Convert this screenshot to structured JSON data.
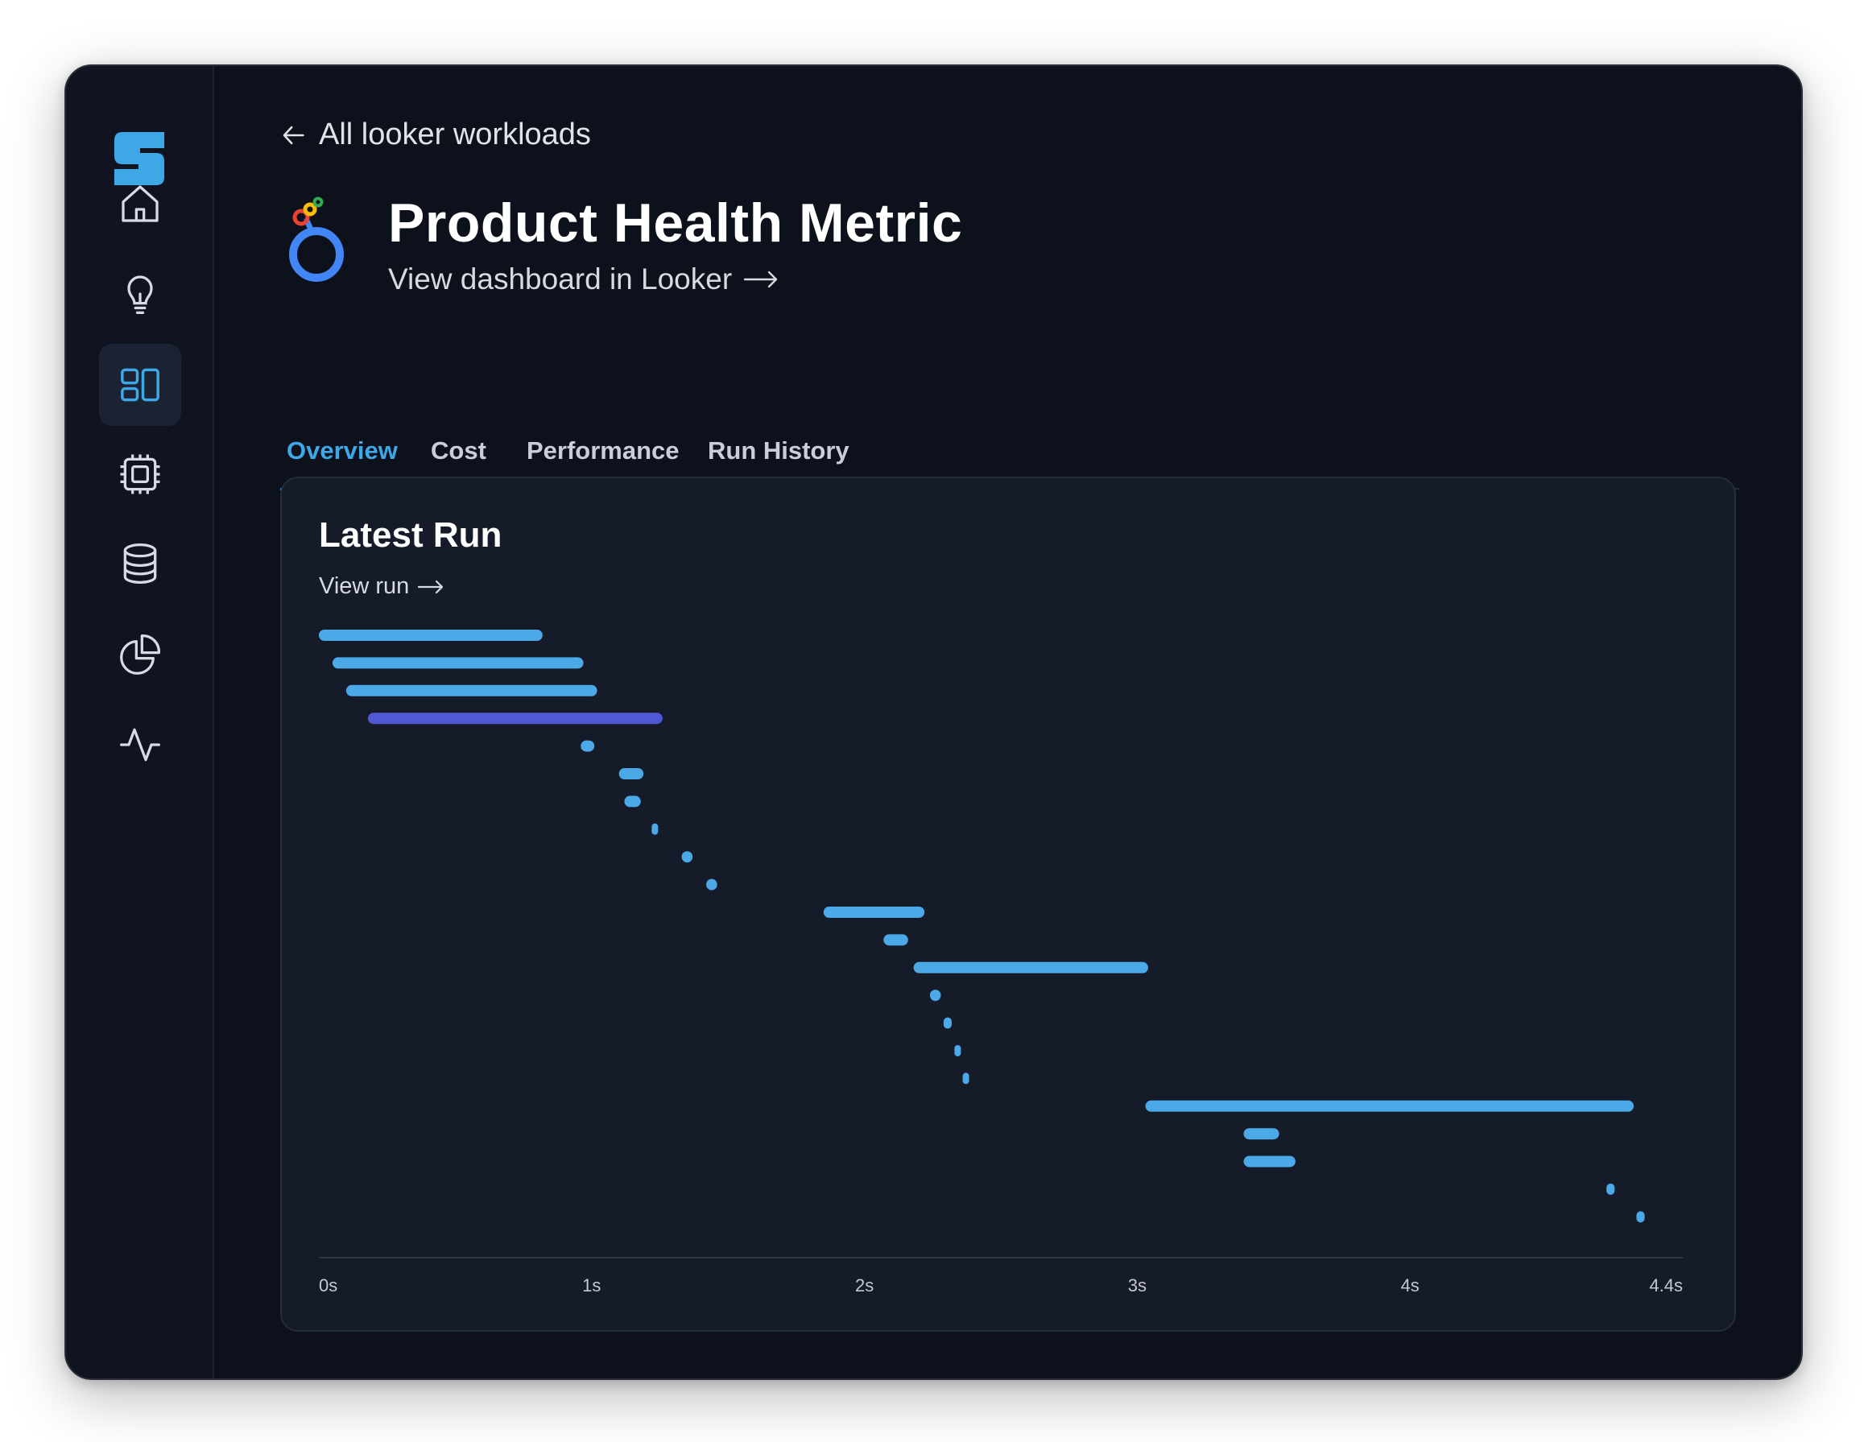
{
  "nav": {
    "logo_icon": "brand-logo-icon",
    "items": [
      {
        "name": "home",
        "icon": "home-icon",
        "active": false
      },
      {
        "name": "insights",
        "icon": "lightbulb-icon",
        "active": false
      },
      {
        "name": "workloads",
        "icon": "layout-icon",
        "active": true
      },
      {
        "name": "compute",
        "icon": "cpu-icon",
        "active": false
      },
      {
        "name": "data",
        "icon": "database-icon",
        "active": false
      },
      {
        "name": "reports",
        "icon": "pie-chart-icon",
        "active": false
      },
      {
        "name": "monitoring",
        "icon": "activity-icon",
        "active": false
      }
    ],
    "accent": "#3ea7e6"
  },
  "header": {
    "back_label": "All looker workloads",
    "title": "Product Health Metric",
    "dashboard_link": "View dashboard in Looker",
    "source_icon": "looker-logo-icon"
  },
  "tabs": [
    {
      "label": "Overview",
      "active": true
    },
    {
      "label": "Cost",
      "active": false
    },
    {
      "label": "Performance",
      "active": false
    },
    {
      "label": "Run History",
      "active": false
    }
  ],
  "card": {
    "title": "Latest Run",
    "link_label": "View run"
  },
  "chart_data": {
    "type": "gantt",
    "xlim": [
      0,
      4.4
    ],
    "ticks": [
      {
        "value": 0,
        "label": "0s"
      },
      {
        "value": 1,
        "label": "1s"
      },
      {
        "value": 2,
        "label": "2s"
      },
      {
        "value": 3,
        "label": "3s"
      },
      {
        "value": 4,
        "label": "4s"
      },
      {
        "value": 4.4,
        "label": "4.4s"
      }
    ],
    "colors": {
      "default": "#4aa9e6",
      "highlight": "#5058d4"
    },
    "tasks": [
      {
        "start": 0.0,
        "end": 0.82
      },
      {
        "start": 0.05,
        "end": 0.97
      },
      {
        "start": 0.1,
        "end": 1.02
      },
      {
        "start": 0.18,
        "end": 1.26,
        "highlight": true
      },
      {
        "start": 0.96,
        "end": 1.01
      },
      {
        "start": 1.1,
        "end": 1.19
      },
      {
        "start": 1.12,
        "end": 1.18
      },
      {
        "start": 1.22,
        "end": 1.23
      },
      {
        "start": 1.33,
        "end": 1.37
      },
      {
        "start": 1.42,
        "end": 1.46
      },
      {
        "start": 1.85,
        "end": 2.22
      },
      {
        "start": 2.07,
        "end": 2.16
      },
      {
        "start": 2.18,
        "end": 3.04
      },
      {
        "start": 2.24,
        "end": 2.28
      },
      {
        "start": 2.29,
        "end": 2.32
      },
      {
        "start": 2.33,
        "end": 2.34
      },
      {
        "start": 2.36,
        "end": 2.37
      },
      {
        "start": 3.03,
        "end": 4.82
      },
      {
        "start": 3.39,
        "end": 3.52
      },
      {
        "start": 3.39,
        "end": 3.58
      },
      {
        "start": 4.72,
        "end": 4.75
      },
      {
        "start": 4.83,
        "end": 4.86
      }
    ]
  }
}
